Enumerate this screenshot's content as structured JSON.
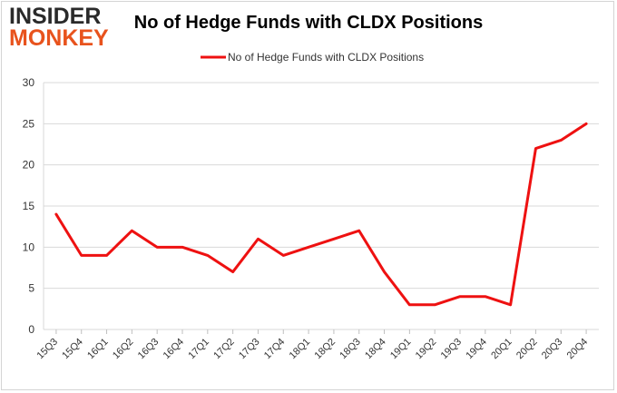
{
  "logo": {
    "line1": "INSIDER",
    "line2": "MONKEY"
  },
  "chart_data": {
    "type": "line",
    "title": "No of Hedge Funds with CLDX Positions",
    "xlabel": "",
    "ylabel": "",
    "legend": "top-center",
    "grid": true,
    "ylim": [
      0,
      30
    ],
    "yticks": [
      0,
      5,
      10,
      15,
      20,
      25,
      30
    ],
    "categories": [
      "15Q3",
      "15Q4",
      "16Q1",
      "16Q2",
      "16Q3",
      "16Q4",
      "17Q1",
      "17Q2",
      "17Q3",
      "17Q4",
      "18Q1",
      "18Q2",
      "18Q3",
      "18Q4",
      "19Q1",
      "19Q2",
      "19Q3",
      "19Q4",
      "20Q1",
      "20Q2",
      "20Q3",
      "20Q4"
    ],
    "series": [
      {
        "name": "No of Hedge Funds with CLDX Positions",
        "color": "#ee1111",
        "values": [
          14,
          9,
          9,
          12,
          10,
          10,
          9,
          7,
          11,
          9,
          10,
          11,
          12,
          7,
          3,
          3,
          4,
          4,
          3,
          22,
          23,
          25
        ]
      }
    ]
  }
}
